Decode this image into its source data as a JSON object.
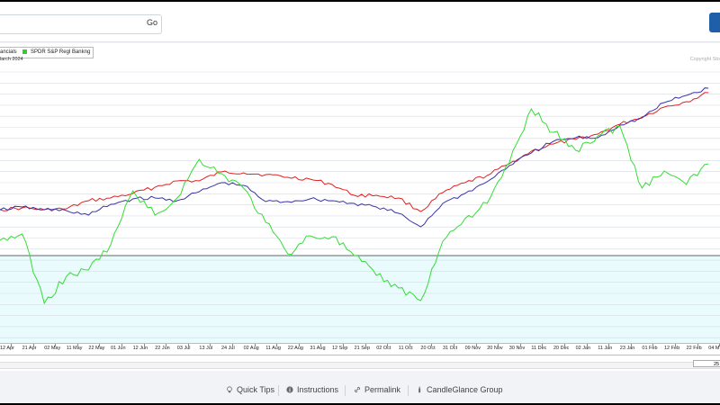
{
  "search": {
    "value": "",
    "go_label": "Go"
  },
  "chart_header": {
    "legend_left_fragment": "ancials",
    "legend_right": "SPDR S&P Regl Bankng",
    "period_fragment": "larch 2024",
    "copyright_fragment": "Copyright Sto"
  },
  "chart_data": {
    "type": "line",
    "grid": true,
    "y_axis_labels": "not visible",
    "colors": {
      "series_red": "#e02020",
      "series_blue": "#3a33aa",
      "series_green": "#33dd33",
      "baseline": "#333333"
    },
    "x": [
      "12 Apr",
      "21 Apr",
      "02 May",
      "11 May",
      "22 May",
      "01 Jun",
      "12 Jun",
      "22 Jun",
      "03 Jul",
      "13 Jul",
      "24 Jul",
      "02 Aug",
      "11 Aug",
      "22 Aug",
      "31 Aug",
      "12 Sep",
      "21 Sep",
      "02 Oct",
      "11 Oct",
      "20 Oct",
      "31 Oct",
      "09 Nov",
      "20 Nov",
      "30 Nov",
      "11 Dec",
      "20 Dec",
      "02 Jan",
      "11 Jan",
      "23 Jan",
      "01 Feb",
      "12 Feb",
      "22 Feb",
      "04 M"
    ],
    "series": [
      {
        "color": "red",
        "values": [
          231,
          229,
          231,
          230,
          221,
          218,
          213,
          206,
          199,
          199,
          189,
          190,
          192,
          195,
          197,
          203,
          215,
          215,
          218,
          233,
          212,
          201,
          193,
          180,
          166,
          158,
          153,
          147,
          136,
          128,
          117,
          111,
          101
        ]
      },
      {
        "color": "blue",
        "values": [
          231,
          228,
          231,
          232,
          237,
          225,
          219,
          218,
          221,
          211,
          201,
          204,
          222,
          222,
          219,
          221,
          224,
          228,
          235,
          250,
          224,
          213,
          200,
          182,
          168,
          155,
          151,
          151,
          137,
          129,
          112,
          104,
          96
        ]
      },
      {
        "color": "green",
        "values": [
          265,
          258,
          335,
          305,
          298,
          270,
          210,
          237,
          218,
          175,
          191,
          207,
          245,
          280,
          260,
          261,
          282,
          304,
          318,
          332,
          266,
          241,
          224,
          179,
          119,
          145,
          165,
          149,
          138,
          207,
          188,
          203,
          180
        ]
      }
    ],
    "baseline_value": 282
  },
  "toolbar": {
    "zoom_value": "25"
  },
  "footer": {
    "quick_tips": "Quick Tips",
    "instructions": "Instructions",
    "permalink": "Permalink",
    "group": "CandleGlance Group"
  }
}
